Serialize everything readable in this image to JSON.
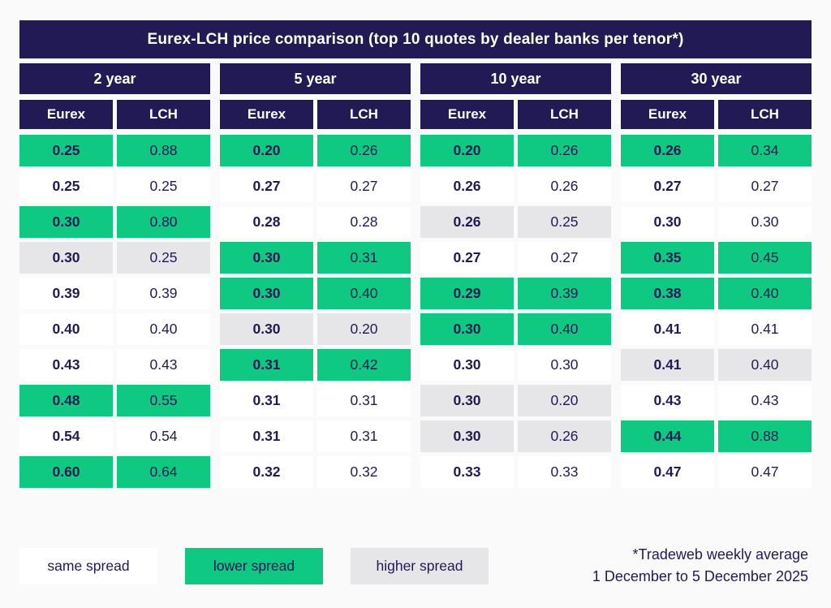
{
  "chart_data": {
    "type": "table",
    "title": "Eurex-LCH price comparison (top 10 quotes by dealer banks per tenor*)",
    "sub_columns": [
      "Eurex",
      "LCH"
    ],
    "groups": [
      {
        "tenor": "2 year",
        "columns": [
          "Eurex",
          "LCH"
        ],
        "rows": [
          {
            "eurex": "0.25",
            "lch": "0.88",
            "spread": "lower"
          },
          {
            "eurex": "0.25",
            "lch": "0.25",
            "spread": "same"
          },
          {
            "eurex": "0.30",
            "lch": "0.80",
            "spread": "lower"
          },
          {
            "eurex": "0.30",
            "lch": "0.25",
            "spread": "higher"
          },
          {
            "eurex": "0.39",
            "lch": "0.39",
            "spread": "same"
          },
          {
            "eurex": "0.40",
            "lch": "0.40",
            "spread": "same"
          },
          {
            "eurex": "0.43",
            "lch": "0.43",
            "spread": "same"
          },
          {
            "eurex": "0.48",
            "lch": "0.55",
            "spread": "lower"
          },
          {
            "eurex": "0.54",
            "lch": "0.54",
            "spread": "same"
          },
          {
            "eurex": "0.60",
            "lch": "0.64",
            "spread": "lower"
          }
        ]
      },
      {
        "tenor": "5 year",
        "columns": [
          "Eurex",
          "LCH"
        ],
        "rows": [
          {
            "eurex": "0.20",
            "lch": "0.26",
            "spread": "lower"
          },
          {
            "eurex": "0.27",
            "lch": "0.27",
            "spread": "same"
          },
          {
            "eurex": "0.28",
            "lch": "0.28",
            "spread": "same"
          },
          {
            "eurex": "0.30",
            "lch": "0.31",
            "spread": "lower"
          },
          {
            "eurex": "0.30",
            "lch": "0.40",
            "spread": "lower"
          },
          {
            "eurex": "0.30",
            "lch": "0.20",
            "spread": "higher"
          },
          {
            "eurex": "0.31",
            "lch": "0.42",
            "spread": "lower"
          },
          {
            "eurex": "0.31",
            "lch": "0.31",
            "spread": "same"
          },
          {
            "eurex": "0.31",
            "lch": "0.31",
            "spread": "same"
          },
          {
            "eurex": "0.32",
            "lch": "0.32",
            "spread": "same"
          }
        ]
      },
      {
        "tenor": "10 year",
        "columns": [
          "Eurex",
          "LCH"
        ],
        "rows": [
          {
            "eurex": "0.20",
            "lch": "0.26",
            "spread": "lower"
          },
          {
            "eurex": "0.26",
            "lch": "0.26",
            "spread": "same"
          },
          {
            "eurex": "0.26",
            "lch": "0.25",
            "spread": "higher"
          },
          {
            "eurex": "0.27",
            "lch": "0.27",
            "spread": "same"
          },
          {
            "eurex": "0.29",
            "lch": "0.39",
            "spread": "lower"
          },
          {
            "eurex": "0.30",
            "lch": "0.40",
            "spread": "lower"
          },
          {
            "eurex": "0.30",
            "lch": "0.30",
            "spread": "same"
          },
          {
            "eurex": "0.30",
            "lch": "0.20",
            "spread": "higher"
          },
          {
            "eurex": "0.30",
            "lch": "0.26",
            "spread": "higher"
          },
          {
            "eurex": "0.33",
            "lch": "0.33",
            "spread": "same"
          }
        ]
      },
      {
        "tenor": "30 year",
        "columns": [
          "Eurex",
          "LCH"
        ],
        "rows": [
          {
            "eurex": "0.26",
            "lch": "0.34",
            "spread": "lower"
          },
          {
            "eurex": "0.27",
            "lch": "0.27",
            "spread": "same"
          },
          {
            "eurex": "0.30",
            "lch": "0.30",
            "spread": "same"
          },
          {
            "eurex": "0.35",
            "lch": "0.45",
            "spread": "lower"
          },
          {
            "eurex": "0.38",
            "lch": "0.40",
            "spread": "lower"
          },
          {
            "eurex": "0.41",
            "lch": "0.41",
            "spread": "same"
          },
          {
            "eurex": "0.41",
            "lch": "0.40",
            "spread": "higher"
          },
          {
            "eurex": "0.43",
            "lch": "0.43",
            "spread": "same"
          },
          {
            "eurex": "0.44",
            "lch": "0.88",
            "spread": "lower"
          },
          {
            "eurex": "0.47",
            "lch": "0.47",
            "spread": "same"
          }
        ]
      }
    ],
    "legend": [
      {
        "label": "same spread",
        "spread": "same"
      },
      {
        "label": "lower spread",
        "spread": "lower"
      },
      {
        "label": "higher spread",
        "spread": "higher"
      }
    ],
    "footnote": [
      "*Tradeweb weekly average",
      "1 December to 5 December 2025"
    ]
  },
  "colors": {
    "navy": "#221a54",
    "green": "#0fc983",
    "gray": "#e6e6e8",
    "cell_white": "#ffffff"
  }
}
